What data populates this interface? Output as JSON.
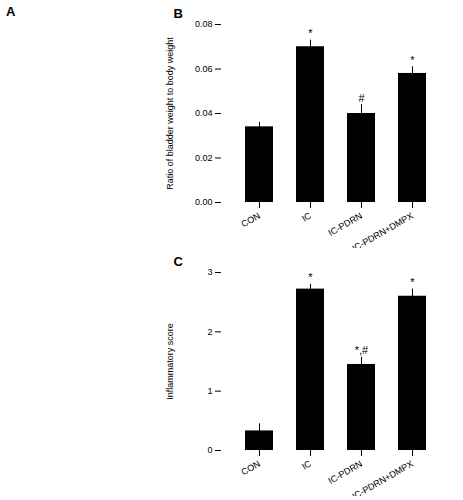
{
  "chart_data": [
    {
      "type": "blank",
      "title": "A"
    },
    {
      "type": "bar",
      "title": "B",
      "categories": [
        "CON",
        "IC",
        "IC-PDRN",
        "IC-PDRN+DMPX"
      ],
      "values": [
        0.034,
        0.07,
        0.04,
        0.058
      ],
      "errors": [
        0.002,
        0.003,
        0.004,
        0.003
      ],
      "ylabel": "Ratio of bladder weight to body weight",
      "ylim": [
        0,
        0.08
      ],
      "yticks": [
        {
          "value": 0,
          "label": "0.00"
        },
        0.02,
        0.04,
        0.06,
        0.08
      ],
      "annotations": [
        {
          "category": "IC",
          "text": "*"
        },
        {
          "category": "IC-PDRN",
          "text": "#"
        },
        {
          "category": "IC-PDRN+DMPX",
          "text": "*"
        }
      ],
      "grid": false
    },
    {
      "type": "bar",
      "title": "C",
      "categories": [
        "CON",
        "IC",
        "IC-PDRN",
        "IC-PDRN+DMPX"
      ],
      "values": [
        0.33,
        2.72,
        1.45,
        2.6
      ],
      "errors": [
        0.12,
        0.08,
        0.12,
        0.12
      ],
      "ylabel": "Inflammatory score",
      "ylim": [
        0,
        3
      ],
      "yticks": [
        0,
        1,
        2,
        3
      ],
      "annotations": [
        {
          "category": "IC",
          "text": "*"
        },
        {
          "category": "IC-PDRN",
          "text": "*,#"
        },
        {
          "category": "IC-PDRN+DMPX",
          "text": "*"
        }
      ],
      "grid": false
    }
  ]
}
